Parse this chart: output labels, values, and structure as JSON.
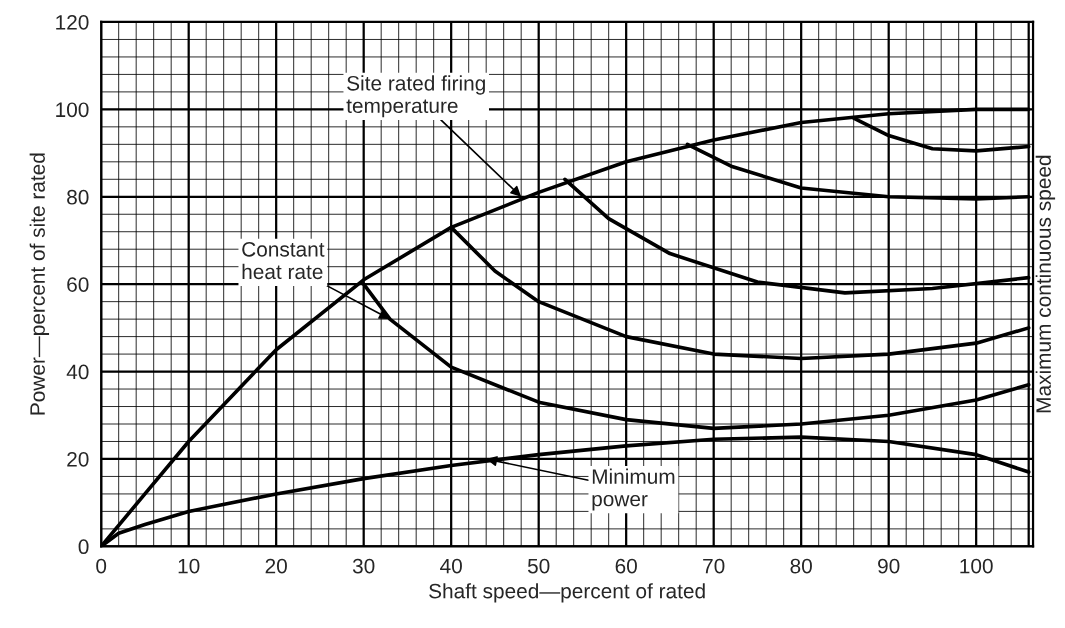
{
  "chart_data": {
    "type": "line",
    "xlabel": "Shaft speed—percent of rated",
    "ylabel": "Power—percent of site rated",
    "xlim": [
      0,
      106.5
    ],
    "ylim": [
      0,
      120
    ],
    "xticks": [
      0,
      10,
      20,
      30,
      40,
      50,
      60,
      70,
      80,
      90,
      100
    ],
    "yticks": [
      0,
      20,
      40,
      60,
      80,
      100,
      120
    ],
    "grid": true,
    "marker": "none",
    "line_style": "solid",
    "series": [
      {
        "color": "#000000",
        "x": [
          0,
          5,
          10,
          20,
          30,
          40,
          50,
          60,
          70,
          80,
          90,
          100,
          106
        ],
        "values": [
          0,
          12,
          24,
          45,
          61,
          73,
          81,
          88,
          93,
          97,
          99,
          100,
          100
        ]
      },
      {
        "color": "#000000",
        "x": [
          0,
          2,
          5,
          10,
          20,
          30,
          40,
          50,
          60,
          70,
          80,
          90,
          100,
          106
        ],
        "values": [
          0,
          3,
          5,
          8,
          12,
          15.5,
          18.5,
          21,
          23,
          24.5,
          25,
          24,
          21,
          17
        ]
      },
      {
        "color": "#000000",
        "x": [
          30,
          33,
          40,
          50,
          60,
          70,
          80,
          90,
          100,
          106
        ],
        "values": [
          60,
          52,
          41,
          33,
          29,
          27,
          28,
          30,
          33.5,
          37
        ]
      },
      {
        "color": "#000000",
        "x": [
          40,
          45,
          50,
          60,
          70,
          80,
          90,
          100,
          106
        ],
        "values": [
          73,
          63,
          56,
          48,
          44,
          43,
          44,
          46.5,
          50
        ]
      },
      {
        "color": "#000000",
        "x": [
          53,
          58,
          65,
          75,
          85,
          95,
          106
        ],
        "values": [
          84,
          75,
          67,
          60.5,
          58,
          59,
          61.5
        ]
      },
      {
        "color": "#000000",
        "x": [
          67,
          72,
          80,
          90,
          100,
          106
        ],
        "values": [
          92,
          87,
          82,
          80,
          79.5,
          80
        ]
      },
      {
        "color": "#000000",
        "x": [
          86,
          90,
          95,
          100,
          106
        ],
        "values": [
          98,
          94,
          91,
          90.5,
          91.5
        ]
      }
    ],
    "ref_lines": [
      {
        "axis": "x",
        "value": 106,
        "label": "Maximum continuous speed"
      }
    ],
    "annotations": [
      {
        "text": "Site rated firing\ntemperature",
        "x": 48,
        "y": 80
      },
      {
        "text": "Constant\nheat rate",
        "x": 33,
        "y": 52
      },
      {
        "text": "Minimum\npower",
        "x": 44,
        "y": 20
      }
    ]
  }
}
